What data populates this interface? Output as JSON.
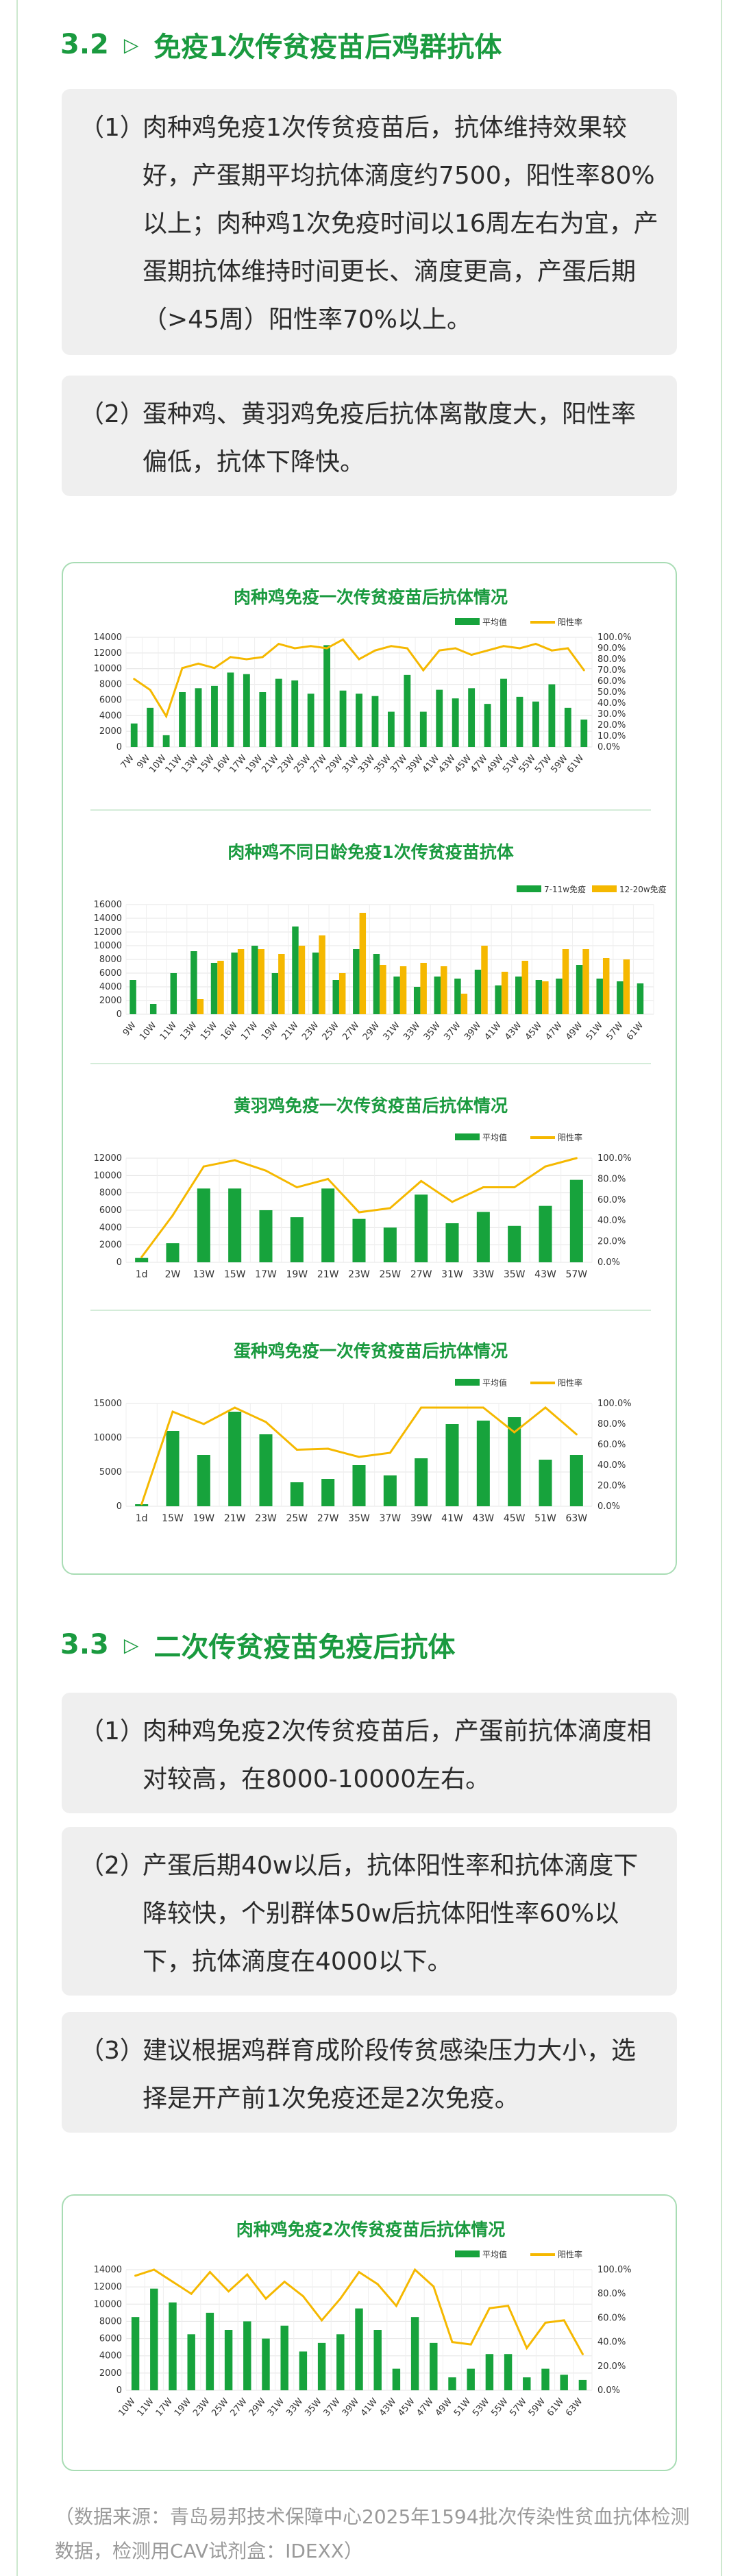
{
  "sections": [
    {
      "num": "3.2",
      "title": "免疫1次传贫疫苗后鸡群抗体"
    },
    {
      "num": "3.3",
      "title": "二次传贫疫苗免疫后抗体"
    }
  ],
  "notes_a": [
    {
      "idx": "（1）",
      "text": "肉种鸡免疫1次传贫疫苗后，抗体维持效果较好，产蛋期平均抗体滴度约7500，阳性率80%以上；肉种鸡1次免疫时间以16周左右为宜，产蛋期抗体维持时间更长、滴度更高，产蛋后期（>45周）阳性率70%以上。"
    },
    {
      "idx": "（2）",
      "text": "蛋种鸡、黄羽鸡免疫后抗体离散度大，阳性率偏低，抗体下降快。"
    }
  ],
  "notes_b": [
    {
      "idx": "（1）",
      "text": "肉种鸡免疫2次传贫疫苗后，产蛋前抗体滴度相对较高，在8000-10000左右。"
    },
    {
      "idx": "（2）",
      "text": "产蛋后期40w以后，抗体阳性率和抗体滴度下降较快，个别群体50w后抗体阳性率60%以下，抗体滴度在4000以下。"
    },
    {
      "idx": "（3）",
      "text": "建议根据鸡群育成阶段传贫感染压力大小，选择是开产前1次免疫还是2次免疫。"
    }
  ],
  "source": "（数据来源：青岛易邦技术保障中心2025年1594批次传染性贫血抗体检测数据，检测用CAV试剂盒：IDEXX）",
  "colors": {
    "green": "#1a9a3f",
    "bar": "#17a33c",
    "line": "#f5b800",
    "bar2": "#f5b800"
  },
  "chart_data": [
    {
      "type": "bar",
      "title": "肉种鸡免疫一次传贫疫苗后抗体情况",
      "legend": [
        "平均值",
        "阳性率"
      ],
      "categories": [
        "7W",
        "9W",
        "10W",
        "11W",
        "13W",
        "15W",
        "16W",
        "17W",
        "19W",
        "21W",
        "23W",
        "25W",
        "27W",
        "29W",
        "31W",
        "33W",
        "35W",
        "37W",
        "39W",
        "41W",
        "43W",
        "45W",
        "47W",
        "49W",
        "51W",
        "55W",
        "57W",
        "59W",
        "61W"
      ],
      "yticks": [
        "0",
        "2000",
        "4000",
        "6000",
        "8000",
        "10000",
        "12000",
        "14000"
      ],
      "y2ticks": [
        "0.0%",
        "10.0%",
        "20.0%",
        "30.0%",
        "40.0%",
        "50.0%",
        "60.0%",
        "70.0%",
        "80.0%",
        "90.0%",
        "100.0%"
      ],
      "ylim": [
        0,
        14000
      ],
      "series": [
        {
          "name": "平均值",
          "kind": "bar",
          "values": [
            3000,
            5000,
            1500,
            7000,
            7500,
            7800,
            9500,
            9300,
            7000,
            8700,
            8500,
            6800,
            13000,
            7200,
            6800,
            6500,
            4500,
            9200,
            4500,
            7300,
            6200,
            7500,
            5500,
            8700,
            6400,
            5800,
            8000,
            5000,
            3500
          ]
        },
        {
          "name": "阳性率",
          "kind": "line",
          "values": [
            62,
            52,
            28,
            72,
            76,
            72,
            82,
            80,
            82,
            94,
            90,
            92,
            90,
            98,
            80,
            88,
            92,
            90,
            70,
            88,
            90,
            84,
            88,
            92,
            90,
            94,
            88,
            90,
            70
          ]
        }
      ]
    },
    {
      "type": "bar",
      "title": "肉种鸡不同日龄免疫1次传贫疫苗抗体",
      "legend": [
        "7-11w免疫",
        "12-20w免疫"
      ],
      "categories": [
        "9W",
        "10W",
        "11W",
        "13W",
        "15W",
        "16W",
        "17W",
        "19W",
        "21W",
        "23W",
        "25W",
        "27W",
        "29W",
        "31W",
        "33W",
        "35W",
        "37W",
        "39W",
        "41W",
        "43W",
        "45W",
        "47W",
        "49W",
        "51W",
        "57W",
        "61W"
      ],
      "yticks": [
        "0",
        "2000",
        "4000",
        "6000",
        "8000",
        "10000",
        "12000",
        "14000",
        "16000"
      ],
      "ylim": [
        0,
        16000
      ],
      "series": [
        {
          "name": "7-11w免疫",
          "values": [
            5000,
            1500,
            6000,
            9200,
            7500,
            9000,
            10000,
            6000,
            12800,
            9000,
            5000,
            9500,
            8800,
            5500,
            4000,
            5500,
            5200,
            6500,
            4200,
            5500,
            5000,
            5200,
            7200,
            5200,
            4800,
            4500
          ]
        },
        {
          "name": "12-20w免疫",
          "values": [
            0,
            0,
            0,
            2200,
            7800,
            9500,
            9500,
            8800,
            10000,
            11500,
            6000,
            14800,
            7200,
            7000,
            7500,
            7000,
            3000,
            10000,
            6200,
            7800,
            4800,
            9500,
            9500,
            8200,
            8000,
            0
          ]
        }
      ]
    },
    {
      "type": "bar",
      "title": "黄羽鸡免疫一次传贫疫苗后抗体情况",
      "legend": [
        "平均值",
        "阳性率"
      ],
      "categories": [
        "1d",
        "2W",
        "13W",
        "15W",
        "17W",
        "19W",
        "21W",
        "23W",
        "25W",
        "27W",
        "31W",
        "33W",
        "35W",
        "43W",
        "57W"
      ],
      "yticks": [
        "0",
        "2000",
        "4000",
        "6000",
        "8000",
        "10000",
        "12000"
      ],
      "y2ticks": [
        "0.0%",
        "20.0%",
        "40.0%",
        "60.0%",
        "80.0%",
        "100.0%"
      ],
      "ylim": [
        0,
        12000
      ],
      "series": [
        {
          "name": "平均值",
          "kind": "bar",
          "values": [
            500,
            2200,
            8500,
            8500,
            6000,
            5200,
            8500,
            5000,
            4000,
            7800,
            4500,
            5800,
            4200,
            6500,
            9500
          ]
        },
        {
          "name": "阳性率",
          "kind": "line",
          "values": [
            5,
            45,
            92,
            98,
            88,
            72,
            80,
            48,
            52,
            78,
            58,
            72,
            72,
            92,
            100
          ]
        }
      ]
    },
    {
      "type": "bar",
      "title": "蛋种鸡免疫一次传贫疫苗后抗体情况",
      "legend": [
        "平均值",
        "阳性率"
      ],
      "categories": [
        "1d",
        "15W",
        "19W",
        "21W",
        "23W",
        "25W",
        "27W",
        "35W",
        "37W",
        "39W",
        "41W",
        "43W",
        "45W",
        "51W",
        "63W"
      ],
      "yticks": [
        "0",
        "5000",
        "10000",
        "15000"
      ],
      "y2ticks": [
        "0.0%",
        "20.0%",
        "40.0%",
        "60.0%",
        "80.0%",
        "100.0%"
      ],
      "ylim": [
        0,
        15000
      ],
      "series": [
        {
          "name": "平均值",
          "kind": "bar",
          "values": [
            300,
            11000,
            7500,
            13800,
            10500,
            3500,
            4000,
            6000,
            4500,
            7000,
            12000,
            12500,
            13000,
            6800,
            7500
          ]
        },
        {
          "name": "阳性率",
          "kind": "line",
          "values": [
            2,
            92,
            80,
            96,
            82,
            55,
            56,
            48,
            52,
            96,
            96,
            96,
            72,
            96,
            70
          ]
        }
      ]
    },
    {
      "type": "bar",
      "title": "肉种鸡免疫2次传贫疫苗后抗体情况",
      "legend": [
        "平均值",
        "阳性率"
      ],
      "categories": [
        "10W",
        "11W",
        "17W",
        "19W",
        "23W",
        "25W",
        "27W",
        "29W",
        "31W",
        "33W",
        "35W",
        "37W",
        "39W",
        "41W",
        "43W",
        "45W",
        "47W",
        "49W",
        "51W",
        "53W",
        "55W",
        "57W",
        "59W",
        "61W",
        "63W"
      ],
      "yticks": [
        "0",
        "2000",
        "4000",
        "6000",
        "8000",
        "10000",
        "12000",
        "14000"
      ],
      "y2ticks": [
        "0.0%",
        "20.0%",
        "40.0%",
        "60.0%",
        "80.0%",
        "100.0%"
      ],
      "ylim": [
        0,
        14000
      ],
      "series": [
        {
          "name": "平均值",
          "kind": "bar",
          "values": [
            8500,
            11800,
            10200,
            6500,
            9000,
            7000,
            8000,
            6000,
            7500,
            4500,
            5500,
            6500,
            9500,
            7000,
            2500,
            8500,
            5500,
            1500,
            2500,
            4200,
            4200,
            1500,
            2500,
            1800,
            1200
          ]
        },
        {
          "name": "阳性率",
          "kind": "line",
          "values": [
            95,
            100,
            90,
            80,
            98,
            82,
            96,
            76,
            90,
            78,
            58,
            76,
            98,
            88,
            70,
            100,
            86,
            40,
            38,
            68,
            70,
            35,
            56,
            58,
            30
          ]
        }
      ]
    }
  ]
}
